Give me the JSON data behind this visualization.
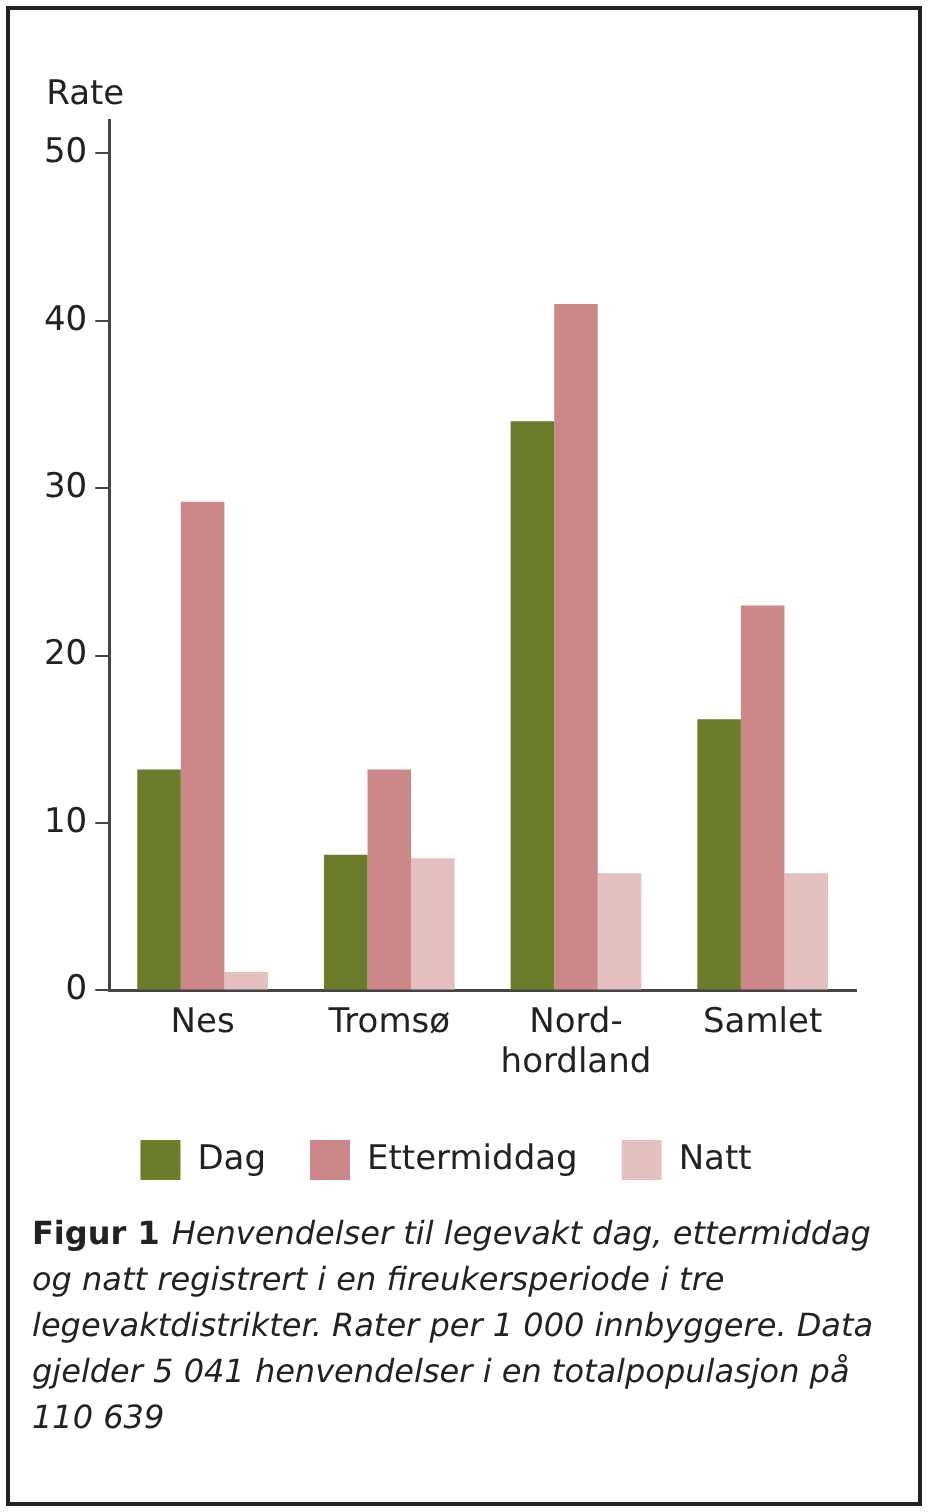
{
  "chart_data": {
    "type": "bar",
    "ylabel": "Rate",
    "categories": [
      "Nes",
      "Tromsø",
      "Nord-hordland",
      "Samlet"
    ],
    "series": [
      {
        "name": "Dag",
        "color": "#6b7d2a",
        "values": [
          13.2,
          8.1,
          34,
          16.2
        ]
      },
      {
        "name": "Ettermiddag",
        "color": "#cc8888",
        "values": [
          29.2,
          13.2,
          41,
          23
        ]
      },
      {
        "name": "Natt",
        "color": "#e4c0c0",
        "values": [
          1.1,
          7.9,
          7,
          7
        ]
      }
    ],
    "ylim": [
      0,
      52
    ],
    "yticks": [
      0,
      10,
      20,
      30,
      40,
      50
    ],
    "grid": false,
    "legend": "bottom",
    "annotations": [
      "Figur 1",
      "Henvendelser til legevakt dag, ettermiddag og natt registrert i en fireukersperiode i tre legevaktdistrikter. Rater per 1 000 innbyggere. Data gjelder 5 041 henvendelser i en totalpopulasjon på 110 639"
    ]
  }
}
